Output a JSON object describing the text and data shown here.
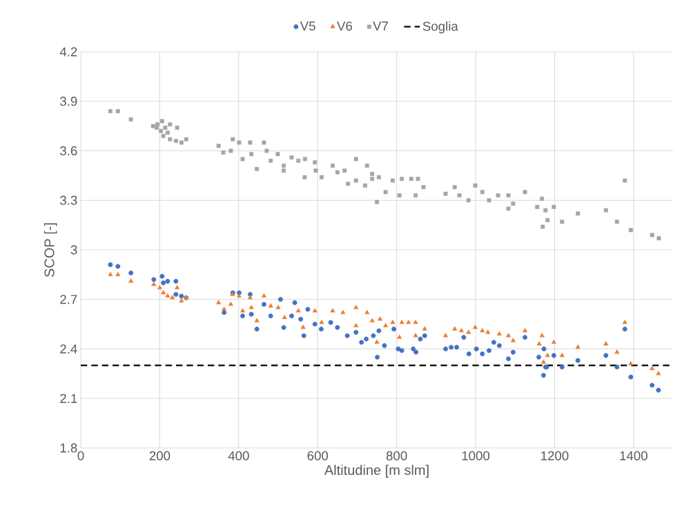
{
  "chart_data": {
    "type": "scatter",
    "xlabel": "Altitudine [m slm]",
    "ylabel": "SCOP [-]",
    "xlim": [
      0,
      1500
    ],
    "xticks": [
      0,
      200,
      400,
      600,
      800,
      1000,
      1200,
      1400
    ],
    "ylim": [
      1.8,
      4.2
    ],
    "yticks": [
      1.8,
      2.1,
      2.4,
      2.7,
      3,
      3.3,
      3.6,
      3.9,
      4.2
    ],
    "grid": true,
    "legend": "top",
    "ref_lines": [
      {
        "axis": "y",
        "value": 2.3,
        "label": "Soglia",
        "color": "#000000",
        "line_style": "dashed"
      }
    ],
    "series": [
      {
        "name": "V5",
        "color": "#4472c4",
        "marker": "circle",
        "x": [
          75,
          94,
          127,
          185,
          206,
          209,
          220,
          241,
          241,
          255,
          267,
          363,
          385,
          401,
          410,
          429,
          432,
          446,
          464,
          481,
          506,
          514,
          534,
          542,
          557,
          565,
          575,
          593,
          609,
          633,
          650,
          675,
          697,
          711,
          723,
          741,
          751,
          755,
          769,
          793,
          804,
          813,
          842,
          849,
          860,
          871,
          924,
          938,
          952,
          970,
          983,
          1002,
          1017,
          1034,
          1046,
          1060,
          1083,
          1095,
          1125,
          1160,
          1172,
          1173,
          1177,
          1180,
          1198,
          1219,
          1259,
          1330,
          1358,
          1378,
          1393,
          1447,
          1463
        ],
        "values": [
          2.91,
          2.9,
          2.86,
          2.82,
          2.84,
          2.8,
          2.81,
          2.81,
          2.73,
          2.72,
          2.71,
          2.62,
          2.74,
          2.74,
          2.6,
          2.73,
          2.61,
          2.52,
          2.67,
          2.6,
          2.7,
          2.53,
          2.6,
          2.68,
          2.58,
          2.48,
          2.64,
          2.55,
          2.52,
          2.56,
          2.53,
          2.48,
          2.5,
          2.44,
          2.46,
          2.48,
          2.35,
          2.51,
          2.42,
          2.52,
          2.4,
          2.39,
          2.4,
          2.38,
          2.46,
          2.48,
          2.4,
          2.41,
          2.41,
          2.47,
          2.37,
          2.4,
          2.37,
          2.39,
          2.44,
          2.42,
          2.34,
          2.38,
          2.47,
          2.35,
          2.24,
          2.4,
          2.29,
          2.29,
          2.36,
          2.29,
          2.33,
          2.36,
          2.29,
          2.52,
          2.23,
          2.18,
          2.15
        ]
      },
      {
        "name": "V6",
        "color": "#ed7d31",
        "marker": "triangle",
        "x": [
          75,
          94,
          127,
          185,
          200,
          209,
          220,
          232,
          244,
          255,
          267,
          349,
          363,
          380,
          384,
          401,
          410,
          429,
          432,
          446,
          464,
          481,
          500,
          516,
          551,
          563,
          593,
          610,
          638,
          664,
          697,
          697,
          725,
          738,
          750,
          758,
          772,
          790,
          807,
          813,
          830,
          848,
          848,
          871,
          924,
          947,
          964,
          982,
          999,
          1017,
          1031,
          1060,
          1083,
          1095,
          1125,
          1161,
          1168,
          1172,
          1182,
          1198,
          1219,
          1259,
          1330,
          1358,
          1378,
          1393,
          1447,
          1463
        ],
        "values": [
          2.85,
          2.85,
          2.81,
          2.79,
          2.77,
          2.74,
          2.72,
          2.71,
          2.77,
          2.69,
          2.71,
          2.68,
          2.64,
          2.67,
          2.73,
          2.72,
          2.63,
          2.71,
          2.65,
          2.57,
          2.72,
          2.66,
          2.65,
          2.59,
          2.63,
          2.53,
          2.63,
          2.56,
          2.63,
          2.62,
          2.65,
          2.54,
          2.62,
          2.57,
          2.44,
          2.58,
          2.54,
          2.56,
          2.47,
          2.56,
          2.56,
          2.56,
          2.48,
          2.52,
          2.48,
          2.52,
          2.51,
          2.5,
          2.53,
          2.51,
          2.5,
          2.49,
          2.48,
          2.45,
          2.51,
          2.43,
          2.48,
          2.32,
          2.36,
          2.44,
          2.36,
          2.41,
          2.43,
          2.38,
          2.56,
          2.31,
          2.28,
          2.25
        ]
      },
      {
        "name": "V7",
        "color": "#a5a5a5",
        "marker": "square",
        "x": [
          75,
          94,
          127,
          183,
          192,
          194,
          203,
          206,
          209,
          214,
          220,
          226,
          226,
          241,
          244,
          255,
          267,
          349,
          361,
          380,
          385,
          401,
          410,
          429,
          432,
          446,
          464,
          471,
          481,
          499,
          514,
          514,
          534,
          551,
          567,
          568,
          593,
          595,
          610,
          638,
          650,
          668,
          677,
          697,
          697,
          720,
          725,
          738,
          738,
          750,
          755,
          772,
          790,
          807,
          813,
          837,
          848,
          854,
          868,
          924,
          947,
          959,
          982,
          999,
          1017,
          1034,
          1057,
          1083,
          1083,
          1095,
          1125,
          1156,
          1168,
          1170,
          1177,
          1182,
          1198,
          1219,
          1259,
          1330,
          1358,
          1378,
          1393,
          1447,
          1464
        ],
        "values": [
          3.84,
          3.84,
          3.79,
          3.75,
          3.74,
          3.76,
          3.72,
          3.78,
          3.69,
          3.74,
          3.71,
          3.76,
          3.67,
          3.66,
          3.74,
          3.65,
          3.67,
          3.63,
          3.59,
          3.6,
          3.67,
          3.65,
          3.55,
          3.65,
          3.58,
          3.49,
          3.65,
          3.6,
          3.54,
          3.58,
          3.51,
          3.48,
          3.56,
          3.54,
          3.44,
          3.55,
          3.53,
          3.48,
          3.44,
          3.51,
          3.47,
          3.48,
          3.4,
          3.55,
          3.42,
          3.39,
          3.51,
          3.43,
          3.46,
          3.29,
          3.44,
          3.35,
          3.42,
          3.33,
          3.43,
          3.43,
          3.33,
          3.43,
          3.38,
          3.34,
          3.38,
          3.33,
          3.3,
          3.39,
          3.35,
          3.3,
          3.33,
          3.33,
          3.25,
          3.28,
          3.35,
          3.26,
          3.31,
          3.14,
          3.24,
          3.18,
          3.26,
          3.17,
          3.22,
          3.24,
          3.17,
          3.42,
          3.12,
          3.09,
          3.07
        ]
      }
    ]
  }
}
